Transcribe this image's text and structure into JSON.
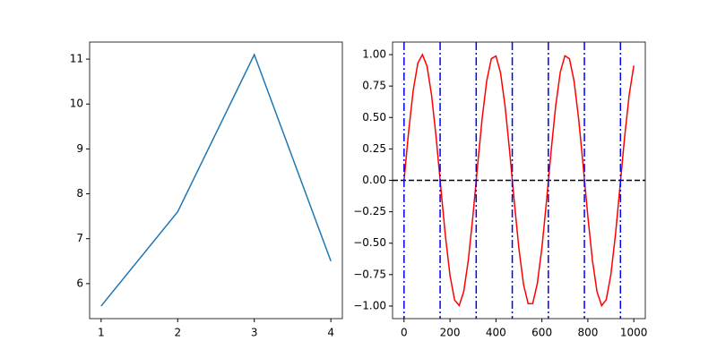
{
  "chart_data": [
    {
      "type": "line",
      "xlim": [
        0.85,
        4.15
      ],
      "ylim": [
        5.22,
        11.38
      ],
      "xticks": [
        1,
        2,
        3,
        4
      ],
      "yticks": [
        6,
        7,
        8,
        9,
        10,
        11
      ],
      "series": [
        {
          "color": "#1f77b4",
          "x": [
            1,
            2,
            3,
            4
          ],
          "values": [
            5.5,
            7.6,
            11.1,
            6.5
          ]
        }
      ]
    },
    {
      "type": "line",
      "xlim": [
        -50,
        1050
      ],
      "ylim": [
        -1.1,
        1.1
      ],
      "xticks": [
        0,
        200,
        400,
        600,
        800,
        1000
      ],
      "yticks": [
        {
          "value": -1,
          "label": "−1.00"
        },
        {
          "value": -0.75,
          "label": "−0.75"
        },
        {
          "value": -0.5,
          "label": "−0.50"
        },
        {
          "value": -0.25,
          "label": "−0.25"
        },
        {
          "value": 0,
          "label": "0.00"
        },
        {
          "value": 0.25,
          "label": "0.25"
        },
        {
          "value": 0.5,
          "label": "0.50"
        },
        {
          "value": 0.75,
          "label": "0.75"
        },
        {
          "value": 1,
          "label": "1.00"
        }
      ],
      "series": [
        {
          "color": "#ff0000",
          "x": [
            0,
            20,
            40,
            60,
            80,
            100,
            120,
            140,
            160,
            180,
            200,
            220,
            240,
            260,
            280,
            300,
            320,
            340,
            360,
            380,
            400,
            420,
            440,
            460,
            480,
            500,
            520,
            540,
            560,
            580,
            600,
            620,
            640,
            660,
            680,
            700,
            720,
            740,
            760,
            780,
            800,
            820,
            840,
            860,
            880,
            900,
            920,
            940,
            960,
            980,
            1000
          ],
          "values": [
            0,
            0.389,
            0.717,
            0.932,
            1.0,
            0.909,
            0.675,
            0.335,
            -0.058,
            -0.443,
            -0.757,
            -0.952,
            -0.996,
            -0.883,
            -0.631,
            -0.279,
            0.117,
            0.494,
            0.794,
            0.968,
            0.989,
            0.855,
            0.585,
            0.223,
            -0.175,
            -0.544,
            -0.828,
            -0.981,
            -0.98,
            -0.822,
            -0.537,
            -0.166,
            0.231,
            0.592,
            0.86,
            0.991,
            0.967,
            0.789,
            0.487,
            0.108,
            -0.288,
            -0.638,
            -0.887,
            -0.997,
            -0.95,
            -0.751,
            -0.435,
            -0.049,
            0.344,
            0.681,
            0.913
          ]
        }
      ],
      "hlines": {
        "color": "#000000",
        "values": [
          0
        ]
      },
      "vlines": {
        "color": "#0000ff",
        "values": [
          0,
          157,
          314,
          471,
          628,
          785,
          942
        ]
      }
    }
  ]
}
